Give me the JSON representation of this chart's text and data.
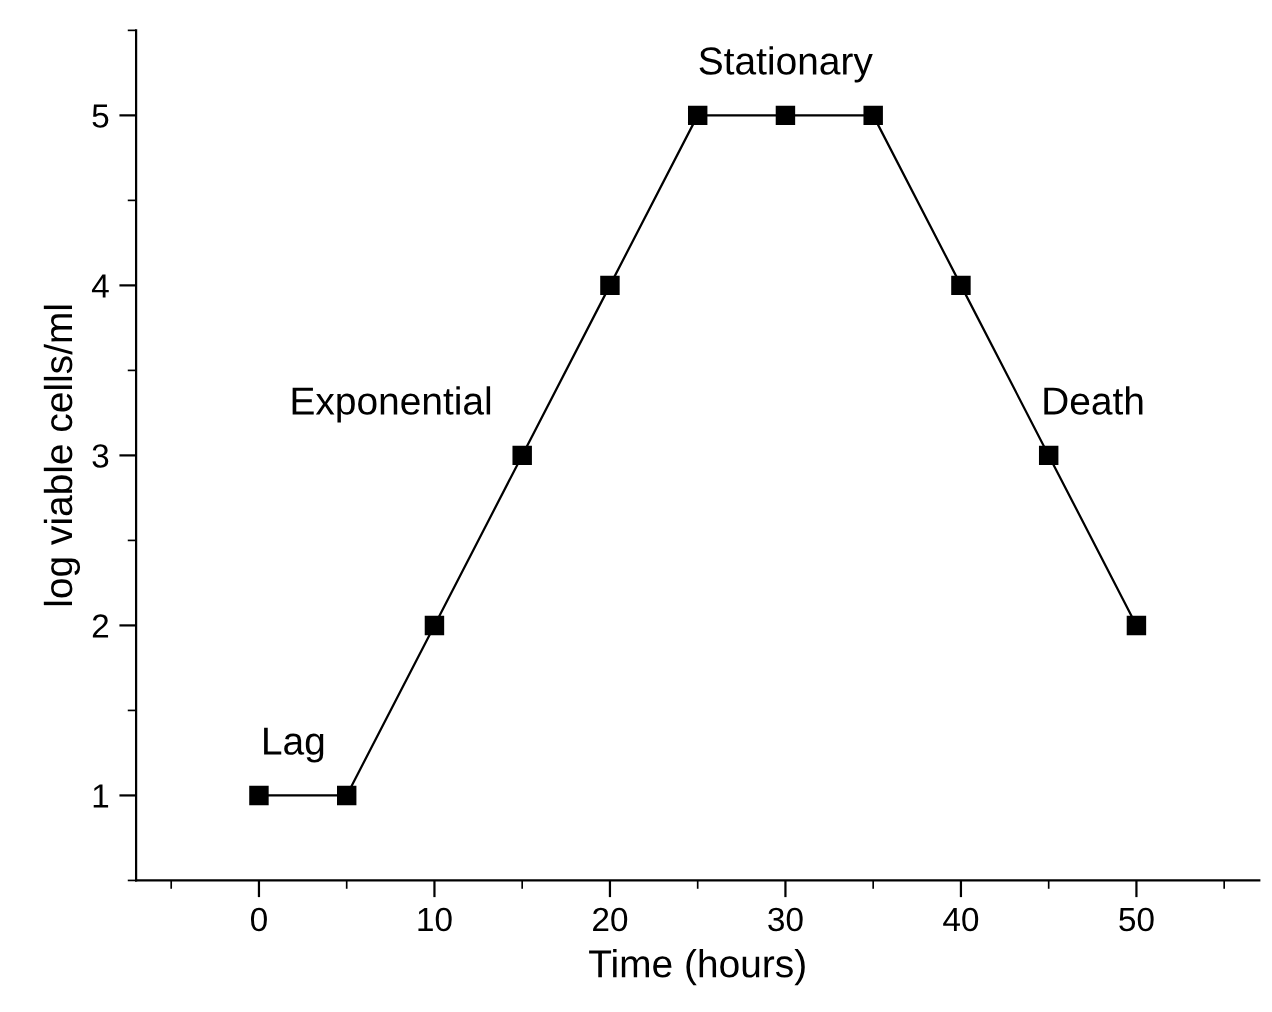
{
  "chart_data": {
    "type": "line",
    "xlabel": "Time (hours)",
    "ylabel": "log viable cells/ml",
    "x": [
      0,
      5,
      10,
      15,
      20,
      25,
      30,
      35,
      40,
      45,
      50
    ],
    "series": [
      {
        "color": "#000000",
        "values": [
          1,
          1,
          2,
          3,
          4,
          5,
          5,
          5,
          4,
          3,
          2
        ]
      }
    ],
    "marker": "square",
    "line_style": "solid",
    "xlim": [
      -7,
      57
    ],
    "xticks": [
      0,
      10,
      20,
      30,
      40,
      50
    ],
    "ylim": [
      0.5,
      5.5
    ],
    "yticks": [
      1,
      2,
      3,
      4,
      5
    ],
    "grid": false,
    "legend": false,
    "annotations": [
      "Lag",
      "Exponential",
      "Stationary",
      "Death"
    ]
  }
}
